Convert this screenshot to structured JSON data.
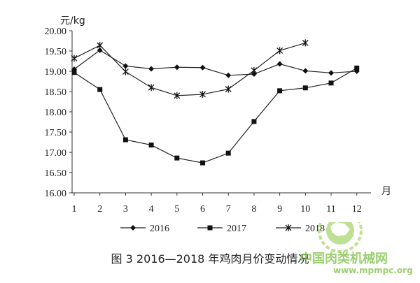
{
  "chart_data": {
    "type": "line",
    "y_unit_label": "元/kg",
    "x_unit_label": "月",
    "categories": [
      "1",
      "2",
      "3",
      "4",
      "5",
      "6",
      "7",
      "8",
      "9",
      "10",
      "11",
      "12"
    ],
    "ylim": [
      16.0,
      20.0
    ],
    "yticks": [
      "16.00",
      "16.50",
      "17.00",
      "17.50",
      "18.00",
      "18.50",
      "19.00",
      "19.50",
      "20.00"
    ],
    "series": [
      {
        "name": "2016",
        "marker": "diamond",
        "values": [
          19.05,
          19.52,
          19.13,
          19.06,
          19.1,
          19.09,
          18.9,
          18.93,
          19.18,
          19.01,
          18.96,
          19.0
        ]
      },
      {
        "name": "2017",
        "marker": "square",
        "values": [
          18.97,
          18.55,
          17.31,
          17.18,
          16.86,
          16.74,
          16.98,
          17.76,
          18.52,
          18.59,
          18.71,
          19.08
        ]
      },
      {
        "name": "2018",
        "marker": "asterisk",
        "values": [
          19.32,
          19.64,
          18.99,
          18.6,
          18.4,
          18.43,
          18.56,
          19.02,
          19.51,
          19.7,
          null,
          null
        ]
      }
    ],
    "grid": false,
    "legend_position": "bottom"
  },
  "caption": "图 3   2016—2018 年鸡肉月价变动情况",
  "watermark": {
    "site_name": "中国肉类机械网",
    "url": "www.mpmpc.org"
  }
}
